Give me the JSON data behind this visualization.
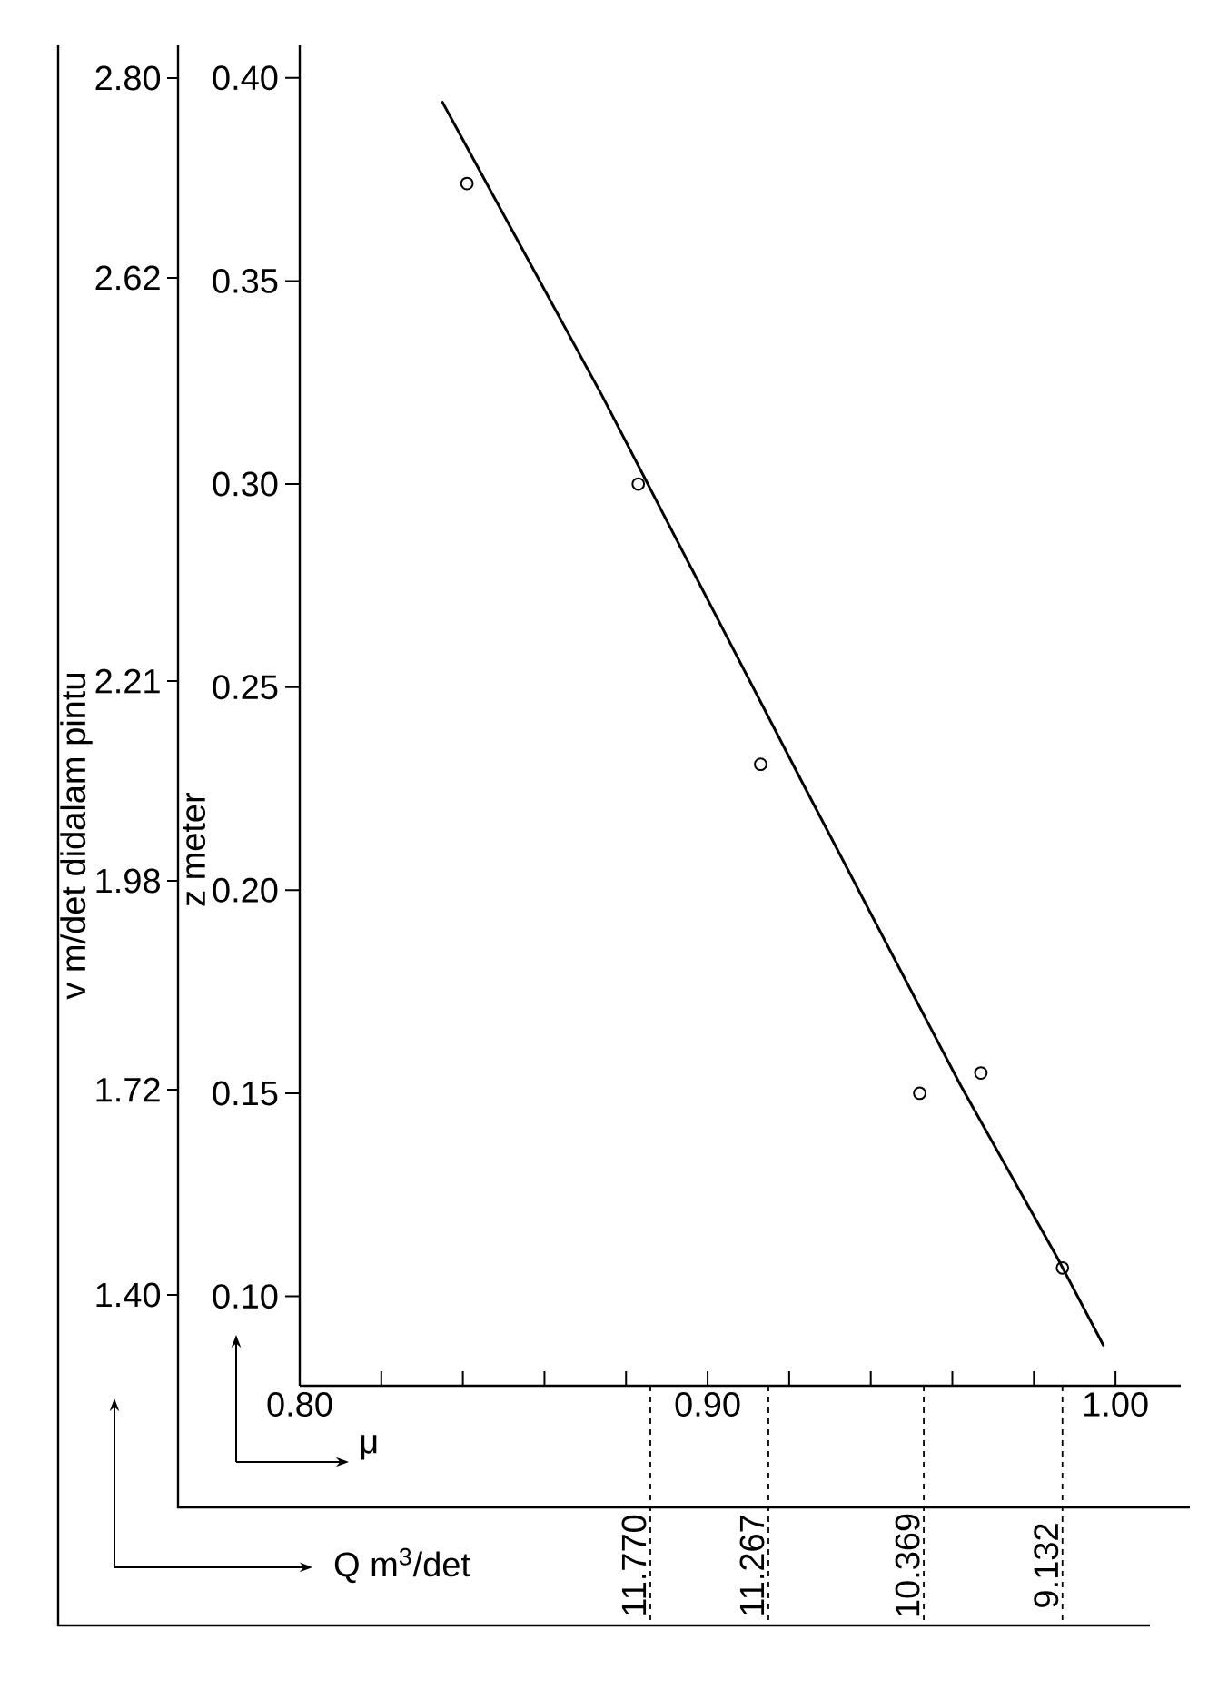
{
  "chart_data": {
    "type": "scatter",
    "xlabel": "μ",
    "ylabel": "z meter",
    "y2label": "v m/det didalam pintu",
    "x2label": "Q m$^{3}$/det",
    "marker": "circle",
    "xlim": [
      0.8,
      1.016
    ],
    "xticks": [
      {
        "value": 0.8,
        "label": "0.80"
      },
      {
        "value": 0.82,
        "label": null
      },
      {
        "value": 0.84,
        "label": null
      },
      {
        "value": 0.86,
        "label": null
      },
      {
        "value": 0.88,
        "label": null
      },
      {
        "value": 0.9,
        "label": "0.90"
      },
      {
        "value": 0.92,
        "label": null
      },
      {
        "value": 0.94,
        "label": null
      },
      {
        "value": 0.96,
        "label": null
      },
      {
        "value": 0.98,
        "label": null
      },
      {
        "value": 1.0,
        "label": "1.00"
      }
    ],
    "ylim": [
      0.078,
      0.408
    ],
    "yticks": [
      {
        "value": 0.1,
        "label": "0.10"
      },
      {
        "value": 0.15,
        "label": "0.15"
      },
      {
        "value": 0.2,
        "label": "0.20"
      },
      {
        "value": 0.25,
        "label": "0.25"
      },
      {
        "value": 0.3,
        "label": "0.30"
      },
      {
        "value": 0.35,
        "label": "0.35"
      },
      {
        "value": 0.4,
        "label": "0.40"
      }
    ],
    "annotations": [
      "1.40",
      "1.72",
      "1.98",
      "2.21",
      "2.62",
      "2.80",
      "11.770",
      "11.267",
      {
        "text": "10.369",
        "x": 0.953
      },
      {
        "text": "9.132",
        "x": 0.987
      }
    ],
    "series": [
      {
        "color": "#000000",
        "x": [
          0.841,
          0.883,
          0.913,
          0.952,
          0.967,
          0.987
        ],
        "values": [
          0.374,
          0.3,
          0.231,
          0.15,
          0.155,
          0.107
        ]
      },
      {
        "type": "line",
        "marker": "none",
        "color": "#000000",
        "x": [
          0.835,
          0.874,
          0.924,
          0.962,
          0.986,
          0.997
        ],
        "values": [
          0.394,
          0.322,
          0.225,
          0.152,
          0.109,
          0.088
        ]
      }
    ]
  }
}
